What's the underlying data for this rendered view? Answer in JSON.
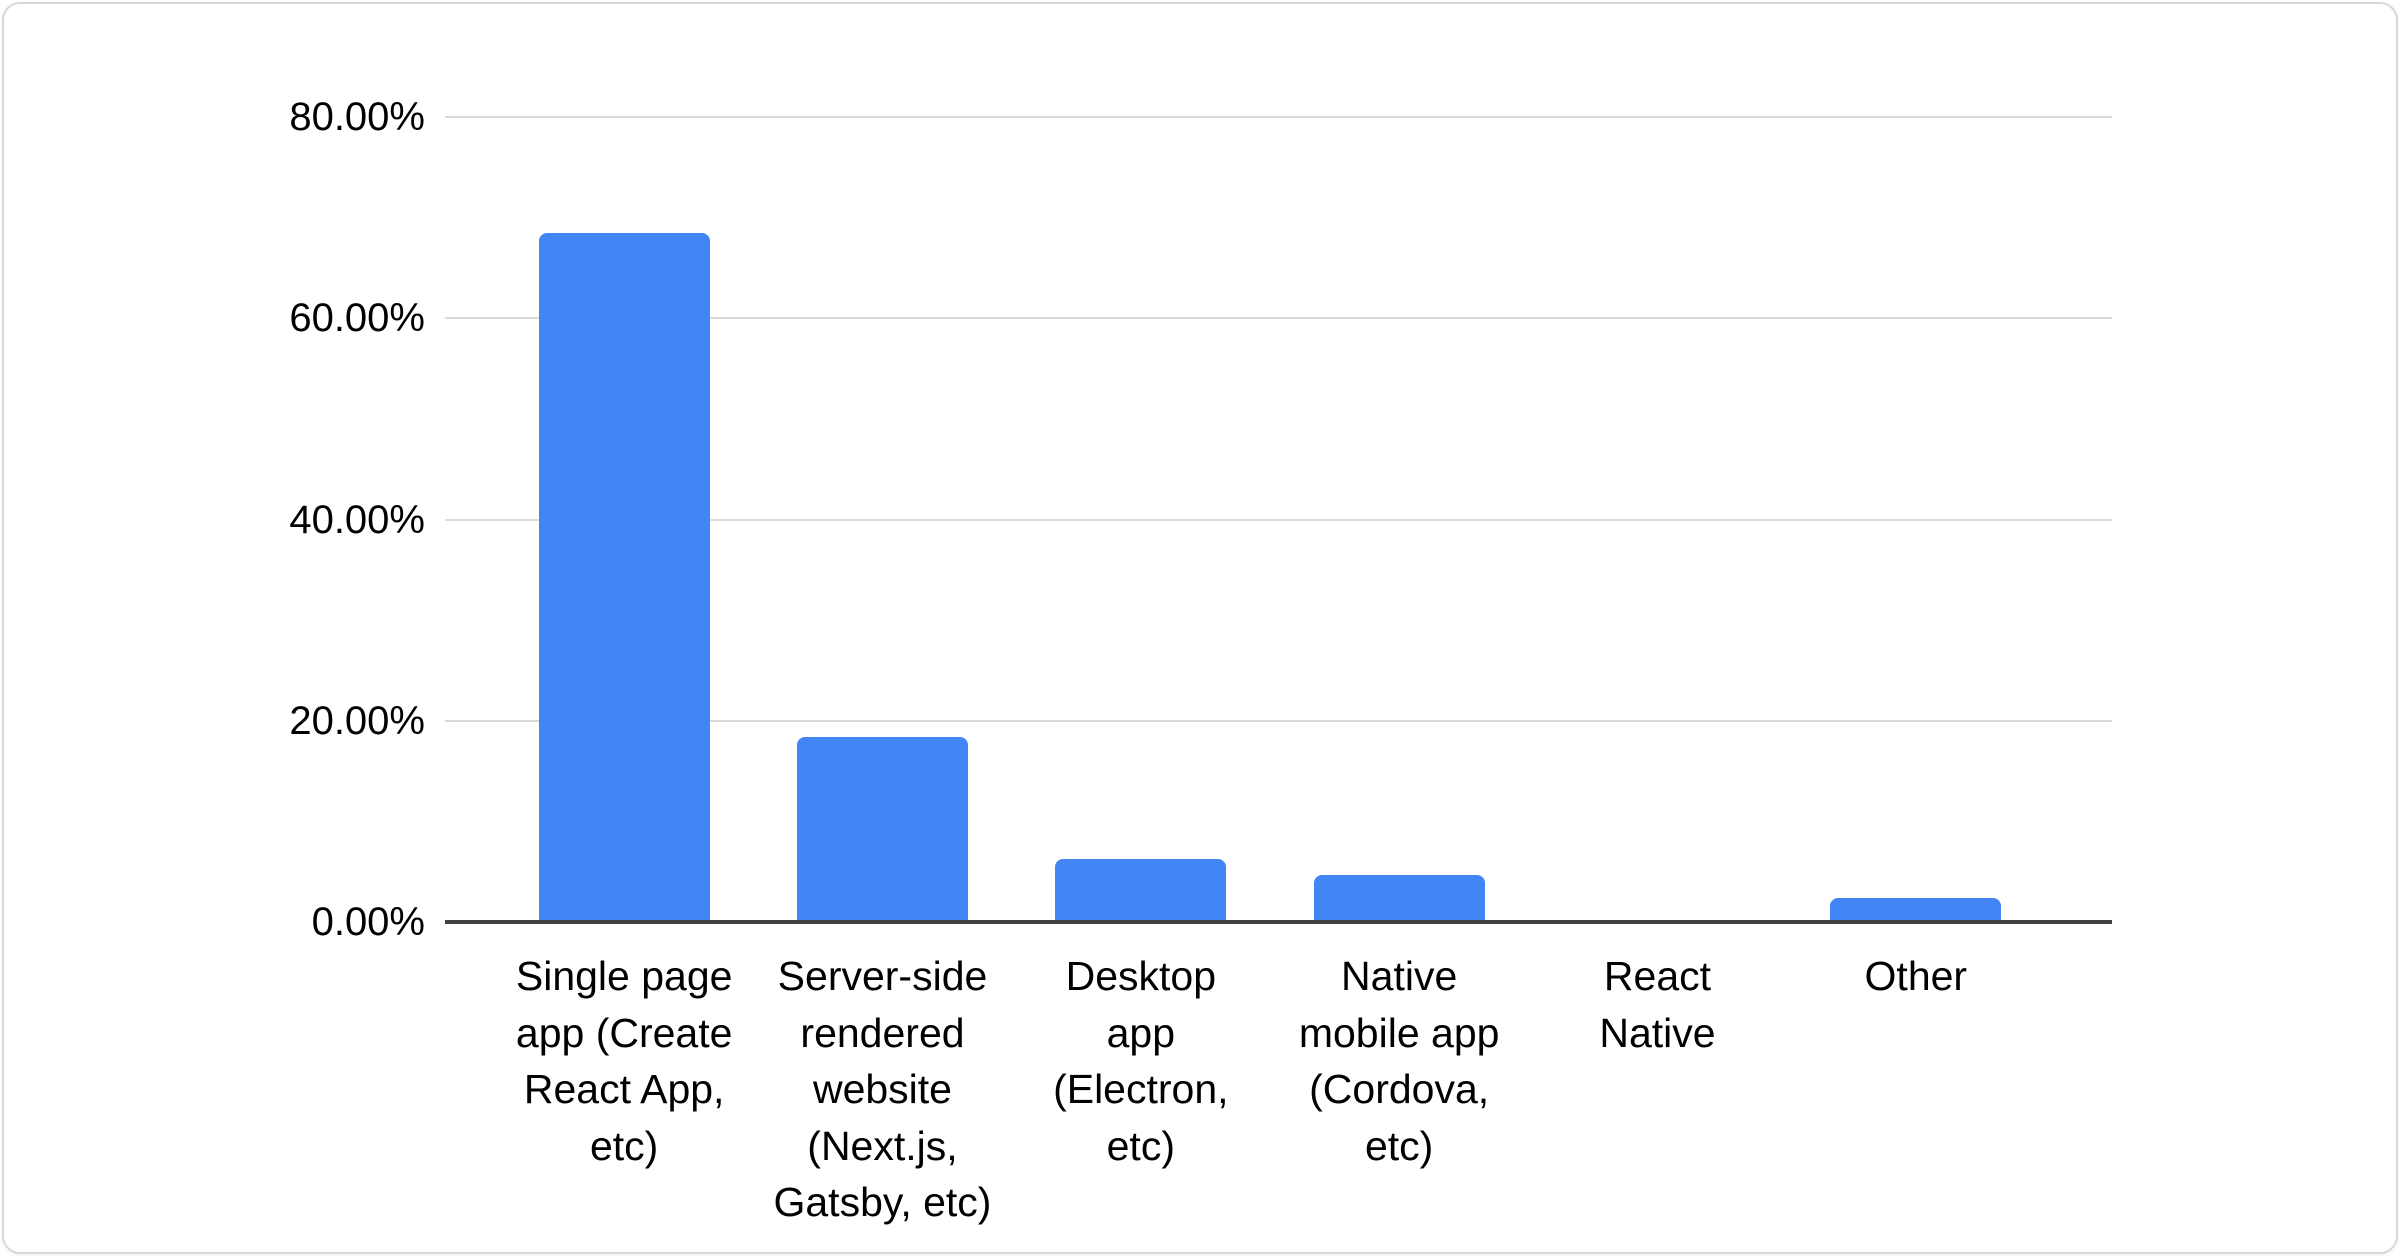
{
  "chart_data": {
    "type": "bar",
    "title": "",
    "xlabel": "",
    "ylabel": "",
    "categories": [
      "Single page app (Create React App, etc)",
      "Server-side rendered website (Next.js, Gatsby, etc)",
      "Desktop app (Electron, etc)",
      "Native mobile app (Cordova, etc)",
      "React Native",
      "Other"
    ],
    "values": [
      68.5,
      18.4,
      6.3,
      4.7,
      0,
      2.4
    ],
    "unit": "%",
    "ylim": [
      0,
      80
    ],
    "y_ticks": [
      {
        "value": 0,
        "label": "0.00%"
      },
      {
        "value": 20,
        "label": "20.00%"
      },
      {
        "value": 40,
        "label": "40.00%"
      },
      {
        "value": 60,
        "label": "60.00%"
      },
      {
        "value": 80,
        "label": "80.00%"
      }
    ],
    "grid": true,
    "legend": "none",
    "colors": {
      "bar": "#4285f4",
      "gridline": "#dadada",
      "axis_line": "#424242",
      "label_text": "#000000",
      "card_border": "#d4d8dc",
      "card_background": "#ffffff"
    }
  }
}
